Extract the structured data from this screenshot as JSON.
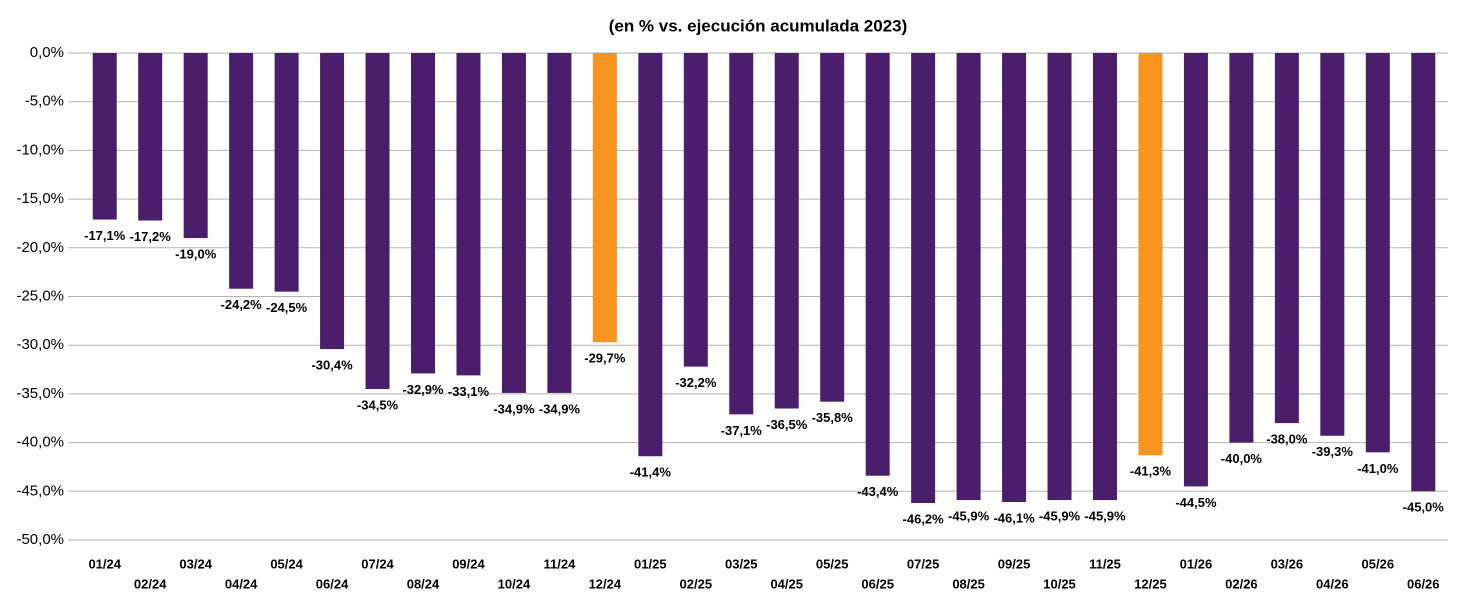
{
  "chart_data": {
    "type": "bar",
    "title": "(en % vs. ejecución acumulada 2023)",
    "categories": [
      "01/24",
      "02/24",
      "03/24",
      "04/24",
      "05/24",
      "06/24",
      "07/24",
      "08/24",
      "09/24",
      "10/24",
      "11/24",
      "12/24",
      "01/25",
      "02/25",
      "03/25",
      "04/25",
      "05/25",
      "06/25",
      "07/25",
      "08/25",
      "09/25",
      "10/25",
      "11/25",
      "12/25",
      "01/26",
      "02/26",
      "03/26",
      "04/26",
      "05/26",
      "06/26"
    ],
    "values": [
      -17.1,
      -17.2,
      -19.0,
      -24.2,
      -24.5,
      -30.4,
      -34.5,
      -32.9,
      -33.1,
      -34.9,
      -34.9,
      -29.7,
      -41.4,
      -32.2,
      -37.1,
      -36.5,
      -35.8,
      -43.4,
      -46.2,
      -45.9,
      -46.1,
      -45.9,
      -45.9,
      -41.3,
      -44.5,
      -40.0,
      -38.0,
      -39.3,
      -41.0,
      -45.0
    ],
    "value_labels": [
      "-17,1%",
      "-17,2%",
      "-19,0%",
      "-24,2%",
      "-24,5%",
      "-30,4%",
      "-34,5%",
      "-32,9%",
      "-33,1%",
      "-34,9%",
      "-34,9%",
      "-29,7%",
      "-41,4%",
      "-32,2%",
      "-37,1%",
      "-36,5%",
      "-35,8%",
      "-43,4%",
      "-46,2%",
      "-45,9%",
      "-46,1%",
      "-45,9%",
      "-45,9%",
      "-41,3%",
      "-44,5%",
      "-40,0%",
      "-38,0%",
      "-39,3%",
      "-41,0%",
      "-45,0%"
    ],
    "colors": [
      "#4b1e6c",
      "#4b1e6c",
      "#4b1e6c",
      "#4b1e6c",
      "#4b1e6c",
      "#4b1e6c",
      "#4b1e6c",
      "#4b1e6c",
      "#4b1e6c",
      "#4b1e6c",
      "#4b1e6c",
      "#f7931e",
      "#4b1e6c",
      "#4b1e6c",
      "#4b1e6c",
      "#4b1e6c",
      "#4b1e6c",
      "#4b1e6c",
      "#4b1e6c",
      "#4b1e6c",
      "#4b1e6c",
      "#4b1e6c",
      "#4b1e6c",
      "#f7931e",
      "#4b1e6c",
      "#4b1e6c",
      "#4b1e6c",
      "#4b1e6c",
      "#4b1e6c",
      "#4b1e6c"
    ],
    "ylim": [
      -50,
      0
    ],
    "yticks": [
      {
        "value": 0,
        "label": "0,0%"
      },
      {
        "value": -5,
        "label": "-5,0%"
      },
      {
        "value": -10,
        "label": "-10,0%"
      },
      {
        "value": -15,
        "label": "-15,0%"
      },
      {
        "value": -20,
        "label": "-20,0%"
      },
      {
        "value": -25,
        "label": "-25,0%"
      },
      {
        "value": -30,
        "label": "-30,0%"
      },
      {
        "value": -35,
        "label": "-35,0%"
      },
      {
        "value": -40,
        "label": "-40,0%"
      },
      {
        "value": -45,
        "label": "-45,0%"
      },
      {
        "value": -50,
        "label": "-50,0%"
      }
    ],
    "grid": true
  }
}
